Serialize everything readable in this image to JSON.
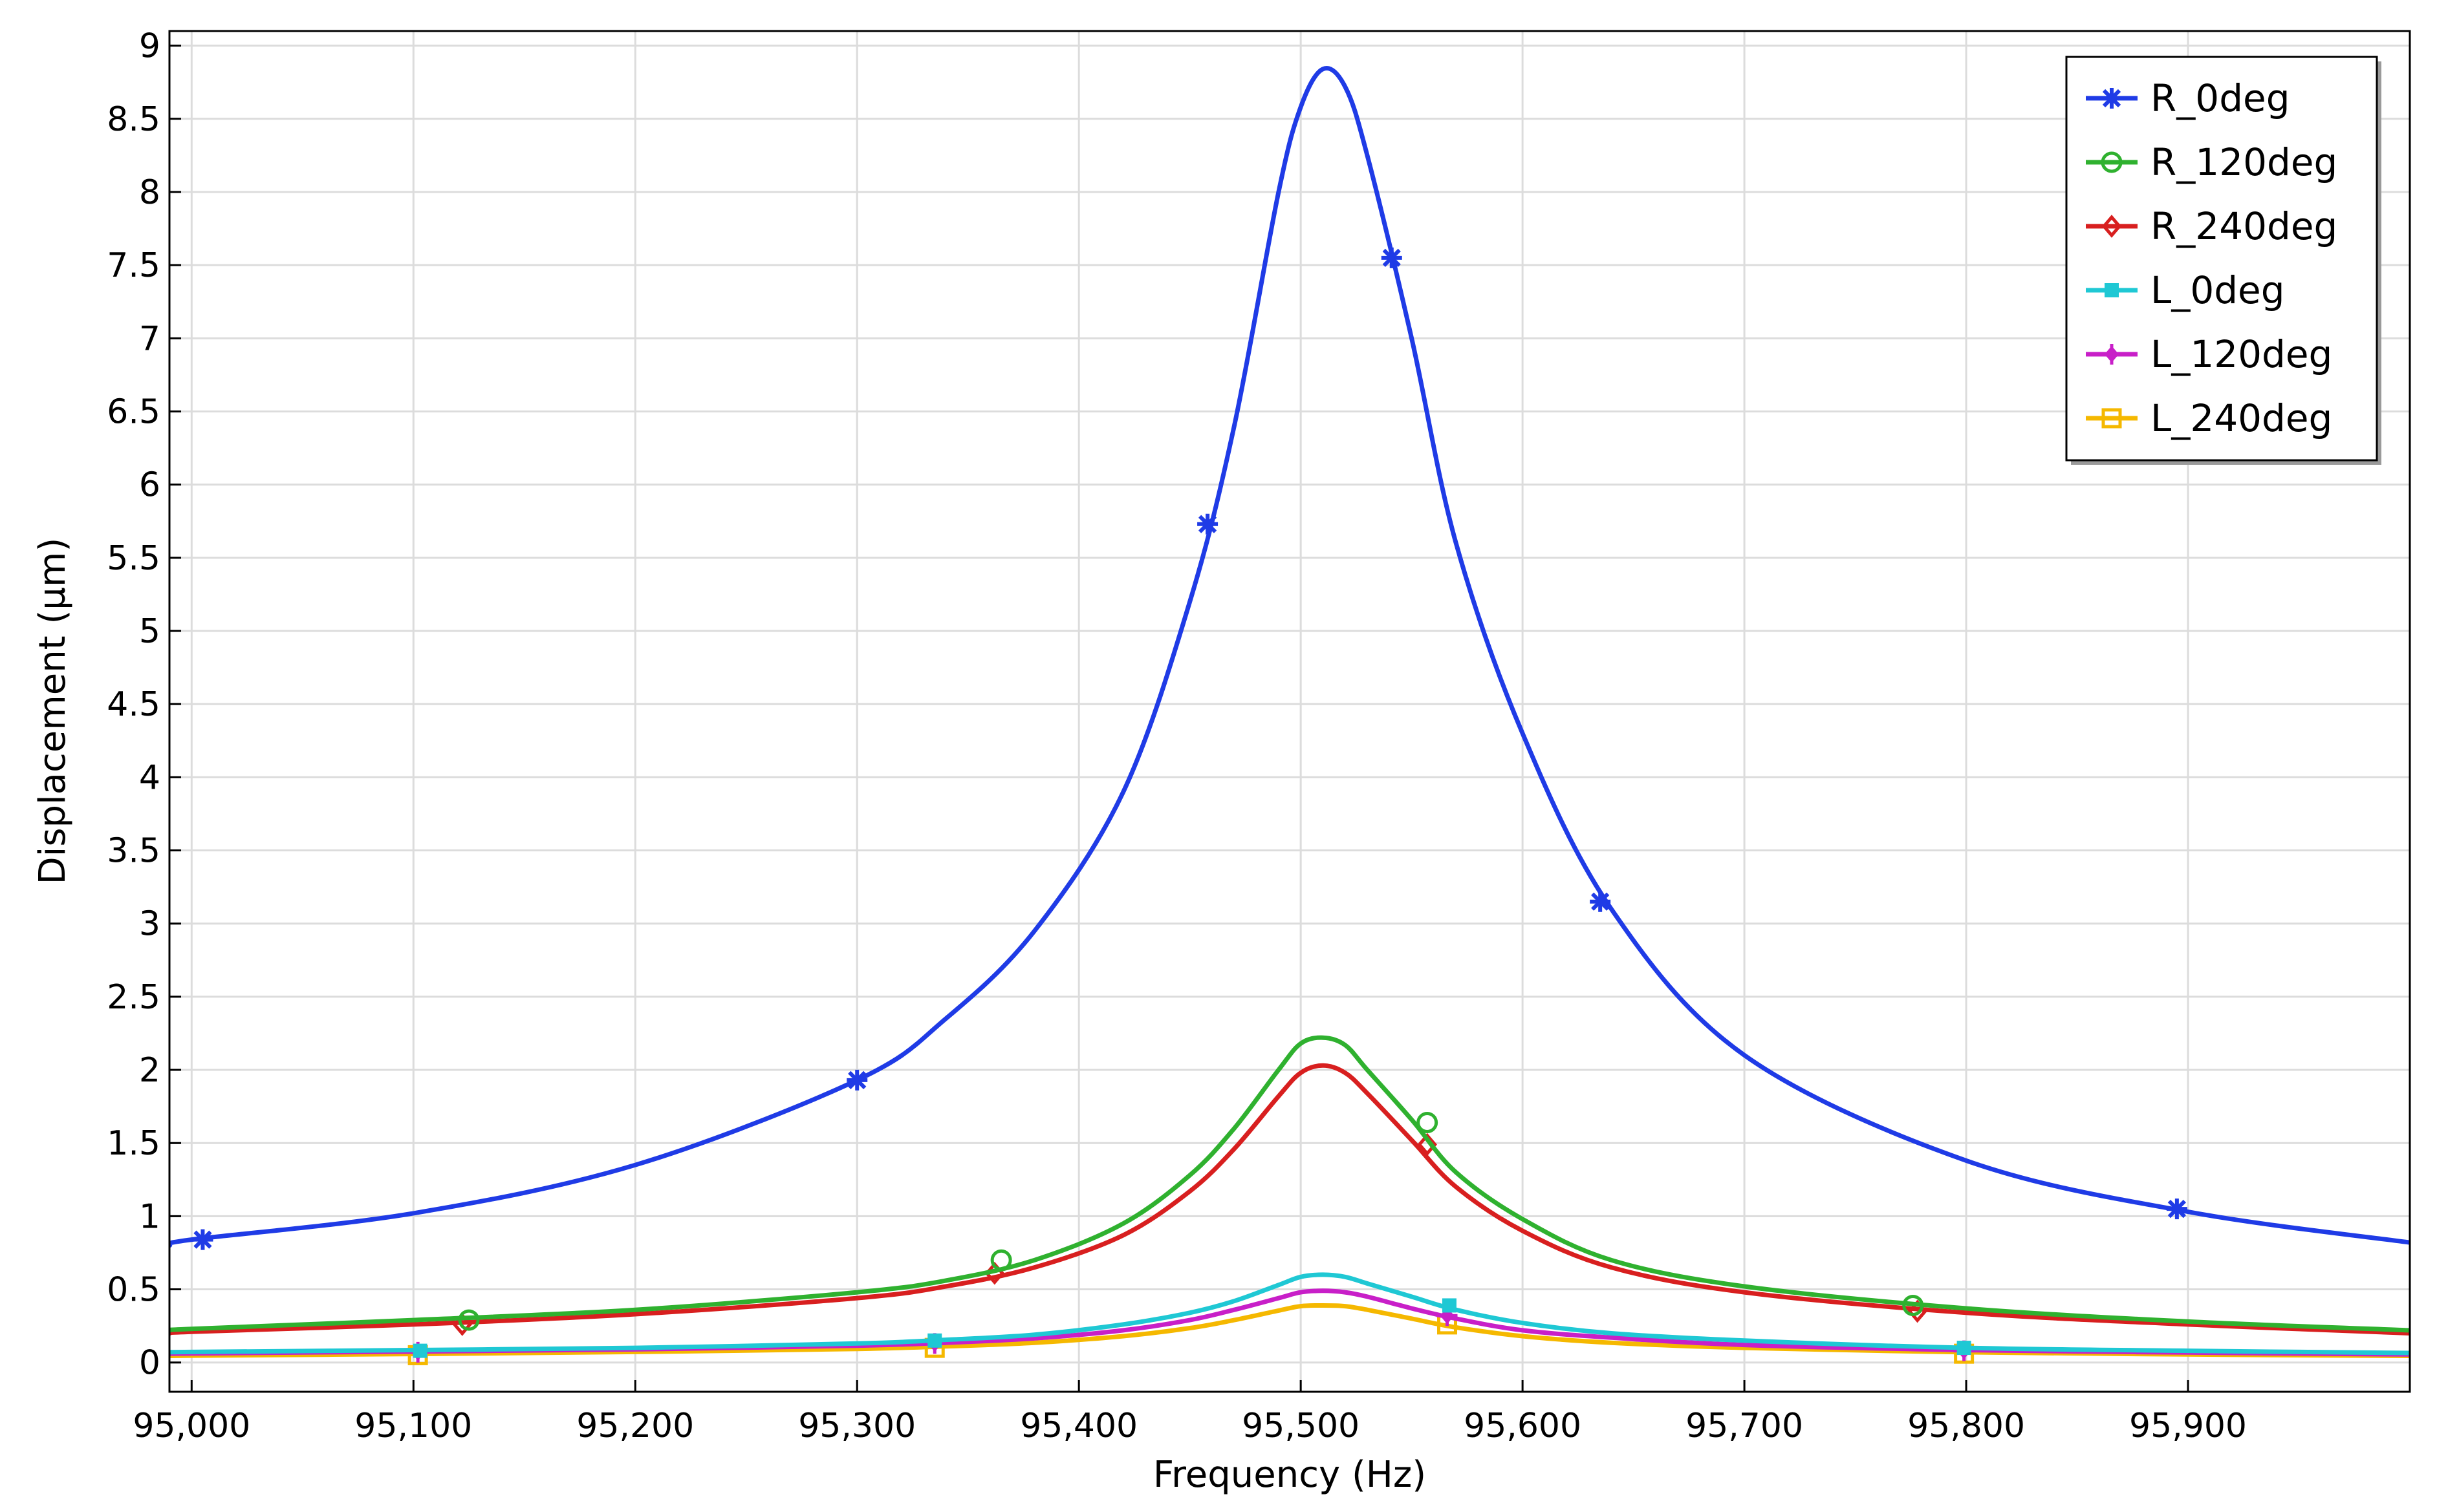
{
  "chart_data": {
    "type": "line",
    "title": "",
    "xlabel": "Frequency (Hz)",
    "ylabel": "Displacement (µm)",
    "xlim": [
      94990,
      96000
    ],
    "ylim": [
      -0.2,
      9.1
    ],
    "x_ticks": [
      95000,
      95100,
      95200,
      95300,
      95400,
      95500,
      95600,
      95700,
      95800,
      95900
    ],
    "x_tick_labels": [
      "95,000",
      "95,100",
      "95,200",
      "95,300",
      "95,400",
      "95,500",
      "95,600",
      "95,700",
      "95,800",
      "95,900"
    ],
    "y_ticks": [
      0,
      0.5,
      1,
      1.5,
      2,
      2.5,
      3,
      3.5,
      4,
      4.5,
      5,
      5.5,
      6,
      6.5,
      7,
      7.5,
      8,
      8.5,
      9
    ],
    "y_tick_labels": [
      "0",
      "0.5",
      "1",
      "1.5",
      "2",
      "2.5",
      "3",
      "3.5",
      "4",
      "4.5",
      "5",
      "5.5",
      "6",
      "6.5",
      "7",
      "7.5",
      "8",
      "8.5",
      "9"
    ],
    "grid": true,
    "legend_position": "top-right",
    "x": [
      94990,
      95000,
      95100,
      95200,
      95300,
      95340,
      95380,
      95420,
      95450,
      95470,
      95490,
      95500,
      95510,
      95520,
      95530,
      95550,
      95570,
      95600,
      95640,
      95700,
      95800,
      95900,
      96000
    ],
    "series": [
      {
        "name": "R_0deg",
        "color": "#1f3be6",
        "marker": "asterisk",
        "values": [
          0.8,
          0.84,
          1.02,
          1.35,
          1.93,
          2.35,
          2.95,
          3.9,
          5.2,
          6.4,
          8.0,
          8.58,
          8.84,
          8.72,
          8.25,
          7.0,
          5.6,
          4.3,
          3.1,
          2.1,
          1.38,
          1.03,
          0.82
        ],
        "marker_x": [
          95005,
          95300,
          95458,
          95541,
          95635,
          95895
        ],
        "marker_y": [
          0.84,
          1.93,
          5.73,
          7.55,
          3.15,
          1.05
        ]
      },
      {
        "name": "R_120deg",
        "color": "#2fb12f",
        "marker": "circle",
        "values": [
          0.22,
          0.23,
          0.29,
          0.36,
          0.48,
          0.56,
          0.7,
          0.95,
          1.28,
          1.6,
          2.0,
          2.18,
          2.22,
          2.17,
          2.0,
          1.66,
          1.3,
          0.98,
          0.7,
          0.52,
          0.37,
          0.28,
          0.22
        ],
        "marker_x": [
          95125,
          95365,
          95557,
          95776
        ],
        "marker_y": [
          0.29,
          0.7,
          1.64,
          0.39
        ]
      },
      {
        "name": "R_240deg",
        "color": "#d81f1f",
        "marker": "diamond",
        "values": [
          0.2,
          0.21,
          0.26,
          0.33,
          0.44,
          0.52,
          0.65,
          0.87,
          1.17,
          1.46,
          1.82,
          1.98,
          2.03,
          1.98,
          1.84,
          1.52,
          1.2,
          0.9,
          0.65,
          0.48,
          0.34,
          0.26,
          0.2
        ],
        "marker_x": [
          95122,
          95362,
          95557,
          95778
        ],
        "marker_y": [
          0.26,
          0.61,
          1.49,
          0.35
        ]
      },
      {
        "name": "L_0deg",
        "color": "#1fc8d4",
        "marker": "square-filled",
        "values": [
          0.07,
          0.072,
          0.085,
          0.1,
          0.13,
          0.155,
          0.19,
          0.26,
          0.34,
          0.42,
          0.53,
          0.585,
          0.6,
          0.585,
          0.54,
          0.45,
          0.36,
          0.27,
          0.2,
          0.15,
          0.1,
          0.08,
          0.065
        ],
        "marker_x": [
          95103,
          95335,
          95567,
          95799
        ],
        "marker_y": [
          0.08,
          0.15,
          0.39,
          0.1
        ]
      },
      {
        "name": "L_120deg",
        "color": "#c81fc8",
        "marker": "plus-diamond",
        "values": [
          0.06,
          0.062,
          0.075,
          0.09,
          0.115,
          0.135,
          0.165,
          0.22,
          0.29,
          0.36,
          0.44,
          0.48,
          0.49,
          0.48,
          0.45,
          0.37,
          0.3,
          0.22,
          0.17,
          0.12,
          0.085,
          0.068,
          0.055
        ],
        "marker_x": [
          95102,
          95335,
          95566,
          95799
        ],
        "marker_y": [
          0.07,
          0.13,
          0.32,
          0.08
        ]
      },
      {
        "name": "L_240deg",
        "color": "#f5b800",
        "marker": "square",
        "values": [
          0.045,
          0.047,
          0.058,
          0.072,
          0.093,
          0.11,
          0.135,
          0.18,
          0.235,
          0.29,
          0.355,
          0.385,
          0.39,
          0.385,
          0.36,
          0.3,
          0.24,
          0.18,
          0.135,
          0.1,
          0.07,
          0.055,
          0.045
        ],
        "marker_x": [
          95102,
          95335,
          95566,
          95799
        ],
        "marker_y": [
          0.05,
          0.1,
          0.26,
          0.06
        ]
      }
    ]
  }
}
